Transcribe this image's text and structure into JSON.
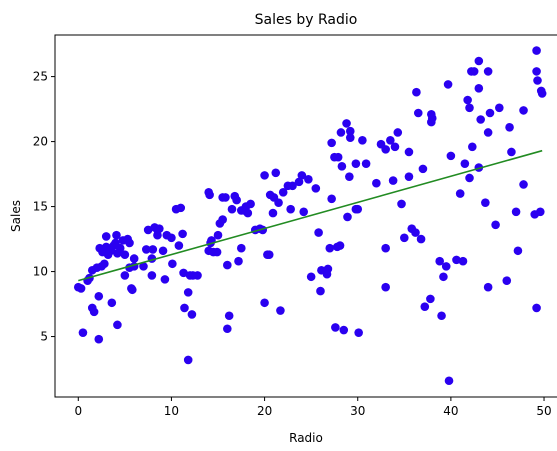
{
  "chart_data": {
    "type": "scatter",
    "title": "Sales by Radio",
    "xlabel": "Radio",
    "ylabel": "Sales",
    "xlim": [
      -2.5,
      51.5
    ],
    "ylim": [
      0.35,
      28.2
    ],
    "xticks": [
      0,
      10,
      20,
      30,
      40,
      50
    ],
    "yticks": [
      5,
      10,
      15,
      20,
      25
    ],
    "grid": false,
    "point_color": "#2a00f0",
    "line_color": "#228b22",
    "series": [
      {
        "type": "scatter",
        "points": [
          [
            0.0,
            8.8
          ],
          [
            0.3,
            8.7
          ],
          [
            0.5,
            5.3
          ],
          [
            1.0,
            9.3
          ],
          [
            1.2,
            9.5
          ],
          [
            1.5,
            10.1
          ],
          [
            1.5,
            7.2
          ],
          [
            1.7,
            6.9
          ],
          [
            2.0,
            10.3
          ],
          [
            2.2,
            8.1
          ],
          [
            2.3,
            11.8
          ],
          [
            2.2,
            4.8
          ],
          [
            2.5,
            10.4
          ],
          [
            2.6,
            11.5
          ],
          [
            2.8,
            10.6
          ],
          [
            3.0,
            12.7
          ],
          [
            3.0,
            11.9
          ],
          [
            3.2,
            11.3
          ],
          [
            3.5,
            11.6
          ],
          [
            3.6,
            7.6
          ],
          [
            3.8,
            12.0
          ],
          [
            4.0,
            12.2
          ],
          [
            4.1,
            12.8
          ],
          [
            4.2,
            11.4
          ],
          [
            4.2,
            5.9
          ],
          [
            4.5,
            11.8
          ],
          [
            4.8,
            12.4
          ],
          [
            5.0,
            11.3
          ],
          [
            5.0,
            9.7
          ],
          [
            5.3,
            12.5
          ],
          [
            5.5,
            12.2
          ],
          [
            5.5,
            10.3
          ],
          [
            5.7,
            8.7
          ],
          [
            5.8,
            8.6
          ],
          [
            6.0,
            10.4
          ],
          [
            6.0,
            11.0
          ],
          [
            7.0,
            10.4
          ],
          [
            7.3,
            11.7
          ],
          [
            7.5,
            13.2
          ],
          [
            7.9,
            11.0
          ],
          [
            7.9,
            9.7
          ],
          [
            8.0,
            11.7
          ],
          [
            8.2,
            13.4
          ],
          [
            8.5,
            13.2
          ],
          [
            8.5,
            12.8
          ],
          [
            8.7,
            13.3
          ],
          [
            9.1,
            11.6
          ],
          [
            9.3,
            9.4
          ],
          [
            9.5,
            12.8
          ],
          [
            10.0,
            12.6
          ],
          [
            10.1,
            10.6
          ],
          [
            10.5,
            14.8
          ],
          [
            10.8,
            12.0
          ],
          [
            11.0,
            14.9
          ],
          [
            11.2,
            12.9
          ],
          [
            11.3,
            9.9
          ],
          [
            11.4,
            7.2
          ],
          [
            11.8,
            8.4
          ],
          [
            11.8,
            3.2
          ],
          [
            12.0,
            9.7
          ],
          [
            12.2,
            6.7
          ],
          [
            12.3,
            9.7
          ],
          [
            12.8,
            9.7
          ],
          [
            14.0,
            16.1
          ],
          [
            14.1,
            15.9
          ],
          [
            14.2,
            12.2
          ],
          [
            14.3,
            12.4
          ],
          [
            14.5,
            11.5
          ],
          [
            14.9,
            11.5
          ],
          [
            14.0,
            11.6
          ],
          [
            15.0,
            12.8
          ],
          [
            15.2,
            13.7
          ],
          [
            15.5,
            14.0
          ],
          [
            15.5,
            15.7
          ],
          [
            15.8,
            15.7
          ],
          [
            16.0,
            10.5
          ],
          [
            16.0,
            5.6
          ],
          [
            16.2,
            6.6
          ],
          [
            16.5,
            14.8
          ],
          [
            16.8,
            15.8
          ],
          [
            17.0,
            15.5
          ],
          [
            17.2,
            10.8
          ],
          [
            17.5,
            11.8
          ],
          [
            17.5,
            14.7
          ],
          [
            17.8,
            14.7
          ],
          [
            18.0,
            15.0
          ],
          [
            18.2,
            14.5
          ],
          [
            18.5,
            15.2
          ],
          [
            19.0,
            13.2
          ],
          [
            19.5,
            13.3
          ],
          [
            19.8,
            13.2
          ],
          [
            20.0,
            17.4
          ],
          [
            20.0,
            7.6
          ],
          [
            20.3,
            11.3
          ],
          [
            20.5,
            11.3
          ],
          [
            20.6,
            15.9
          ],
          [
            20.9,
            14.5
          ],
          [
            21.0,
            15.7
          ],
          [
            21.2,
            17.6
          ],
          [
            21.5,
            15.3
          ],
          [
            21.7,
            7.0
          ],
          [
            22.0,
            16.1
          ],
          [
            22.5,
            16.6
          ],
          [
            22.8,
            14.8
          ],
          [
            23.0,
            16.6
          ],
          [
            23.7,
            16.9
          ],
          [
            24.0,
            17.4
          ],
          [
            24.2,
            14.6
          ],
          [
            24.7,
            17.1
          ],
          [
            25.0,
            9.6
          ],
          [
            25.5,
            16.4
          ],
          [
            25.8,
            13.0
          ],
          [
            26.0,
            8.5
          ],
          [
            26.1,
            10.1
          ],
          [
            26.7,
            9.8
          ],
          [
            26.8,
            10.2
          ],
          [
            27.0,
            11.8
          ],
          [
            27.2,
            15.6
          ],
          [
            27.2,
            19.9
          ],
          [
            27.5,
            18.8
          ],
          [
            27.6,
            5.7
          ],
          [
            27.8,
            11.9
          ],
          [
            27.9,
            18.8
          ],
          [
            28.1,
            12.0
          ],
          [
            28.2,
            20.7
          ],
          [
            28.3,
            18.1
          ],
          [
            28.5,
            5.5
          ],
          [
            28.8,
            21.4
          ],
          [
            28.9,
            14.2
          ],
          [
            29.1,
            17.3
          ],
          [
            29.2,
            20.3
          ],
          [
            29.2,
            20.8
          ],
          [
            29.8,
            14.8
          ],
          [
            29.8,
            18.3
          ],
          [
            30.0,
            14.8
          ],
          [
            30.1,
            5.3
          ],
          [
            30.5,
            20.1
          ],
          [
            30.9,
            18.3
          ],
          [
            32.0,
            16.8
          ],
          [
            32.5,
            19.8
          ],
          [
            33.0,
            19.4
          ],
          [
            33.0,
            11.8
          ],
          [
            33.0,
            8.8
          ],
          [
            33.5,
            20.1
          ],
          [
            33.8,
            17.0
          ],
          [
            34.0,
            19.6
          ],
          [
            34.3,
            20.7
          ],
          [
            34.7,
            15.2
          ],
          [
            35.0,
            12.6
          ],
          [
            35.5,
            19.2
          ],
          [
            35.5,
            17.3
          ],
          [
            35.8,
            13.3
          ],
          [
            36.2,
            13.0
          ],
          [
            36.3,
            23.8
          ],
          [
            36.5,
            22.2
          ],
          [
            36.8,
            12.5
          ],
          [
            37.0,
            17.9
          ],
          [
            37.2,
            7.3
          ],
          [
            37.8,
            7.9
          ],
          [
            37.9,
            21.5
          ],
          [
            37.9,
            22.1
          ],
          [
            38.0,
            21.8
          ],
          [
            38.8,
            10.8
          ],
          [
            39.0,
            6.6
          ],
          [
            39.2,
            9.6
          ],
          [
            39.5,
            10.4
          ],
          [
            39.7,
            24.4
          ],
          [
            39.8,
            1.6
          ],
          [
            40.0,
            18.9
          ],
          [
            40.6,
            10.9
          ],
          [
            41.0,
            16.0
          ],
          [
            41.3,
            10.8
          ],
          [
            41.5,
            18.3
          ],
          [
            41.8,
            23.2
          ],
          [
            42.0,
            17.2
          ],
          [
            42.0,
            22.6
          ],
          [
            42.2,
            25.4
          ],
          [
            42.3,
            19.6
          ],
          [
            42.5,
            25.4
          ],
          [
            43.0,
            24.1
          ],
          [
            43.0,
            18.0
          ],
          [
            43.0,
            26.2
          ],
          [
            43.2,
            21.7
          ],
          [
            43.7,
            15.3
          ],
          [
            44.0,
            8.8
          ],
          [
            44.0,
            25.4
          ],
          [
            44.0,
            20.7
          ],
          [
            44.2,
            22.2
          ],
          [
            44.8,
            13.6
          ],
          [
            45.2,
            22.6
          ],
          [
            46.0,
            9.3
          ],
          [
            46.3,
            21.1
          ],
          [
            46.5,
            19.2
          ],
          [
            47.0,
            14.6
          ],
          [
            47.2,
            11.6
          ],
          [
            47.8,
            16.7
          ],
          [
            47.8,
            22.4
          ],
          [
            49.0,
            14.4
          ],
          [
            49.2,
            7.2
          ],
          [
            49.2,
            27.0
          ],
          [
            49.2,
            25.4
          ],
          [
            49.3,
            24.7
          ],
          [
            49.6,
            14.6
          ],
          [
            49.7,
            23.9
          ],
          [
            49.8,
            23.7
          ]
        ]
      },
      {
        "type": "line",
        "x": [
          0,
          49.8
        ],
        "y": [
          9.3,
          19.3
        ]
      }
    ]
  }
}
